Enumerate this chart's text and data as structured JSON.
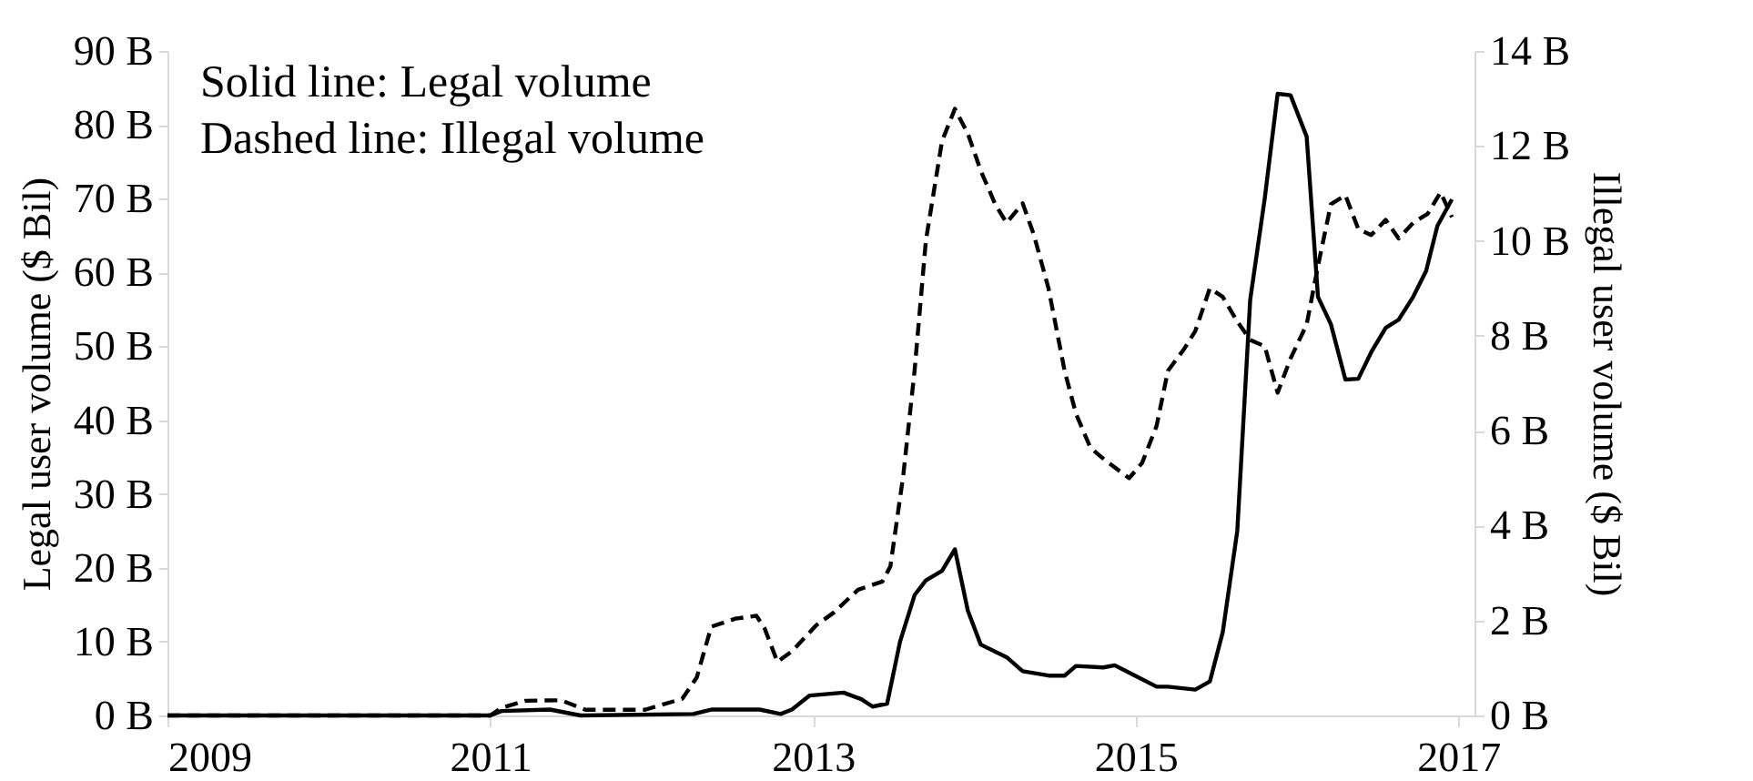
{
  "chart_data": {
    "type": "line",
    "ylabel": "Legal user volume ($ Bil)",
    "y2label": "Illegal user volume ($ Bil)",
    "annotations": [
      "Solid line: Legal volume",
      "Dashed line: Illegal volume"
    ],
    "xlim": [
      2009,
      2017.1
    ],
    "xticks": [
      2009,
      2011,
      2013,
      2015,
      2017
    ],
    "ylim": [
      0,
      90
    ],
    "yticks": [
      {
        "value": 0,
        "label": "0 B"
      },
      {
        "value": 10,
        "label": "10 B"
      },
      {
        "value": 20,
        "label": "20 B"
      },
      {
        "value": 30,
        "label": "30 B"
      },
      {
        "value": 40,
        "label": "40 B"
      },
      {
        "value": 50,
        "label": "50 B"
      },
      {
        "value": 60,
        "label": "60 B"
      },
      {
        "value": 70,
        "label": "70 B"
      },
      {
        "value": 80,
        "label": "80 B"
      },
      {
        "value": 90,
        "label": "90 B"
      }
    ],
    "y2lim": [
      0,
      14
    ],
    "y2ticks": [
      {
        "value": 0,
        "label": "0 B"
      },
      {
        "value": 2,
        "label": "2 B"
      },
      {
        "value": 4,
        "label": "4 B"
      },
      {
        "value": 6,
        "label": "6 B"
      },
      {
        "value": 8,
        "label": "8 B"
      },
      {
        "value": 10,
        "label": "10 B"
      },
      {
        "value": 12,
        "label": "12 B"
      },
      {
        "value": 14,
        "label": "14 B"
      }
    ],
    "grid": false,
    "marker": "none",
    "series": [
      {
        "color": "#000000",
        "line_style": "solid",
        "x": [
          2009,
          2010,
          2011,
          2011.07,
          2011.37,
          2011.56,
          2012.26,
          2012.37,
          2012.67,
          2012.8,
          2012.87,
          2012.98,
          2013.19,
          2013.3,
          2013.37,
          2013.46,
          2013.54,
          2013.63,
          2013.7,
          2013.8,
          2013.88,
          2013.96,
          2014.04,
          2014.2,
          2014.3,
          2014.46,
          2014.56,
          2014.63,
          2014.8,
          2014.87,
          2014.96,
          2015.13,
          2015.2,
          2015.37,
          2015.46,
          2015.54,
          2015.63,
          2015.71,
          2015.8,
          2015.88,
          2015.96,
          2016.06,
          2016.13,
          2016.21,
          2016.3,
          2016.38,
          2016.46,
          2016.55,
          2016.63,
          2016.72,
          2016.8,
          2016.87,
          2016.96
        ],
        "values": [
          0,
          0,
          0,
          0.6,
          0.8,
          0,
          0.2,
          0.8,
          0.8,
          0.2,
          0.8,
          2.7,
          3.1,
          2.2,
          1.2,
          1.6,
          10,
          16.3,
          18.3,
          19.6,
          22.5,
          14.2,
          9.6,
          7.9,
          6,
          5.4,
          5.4,
          6.7,
          6.5,
          6.8,
          5.8,
          3.9,
          3.9,
          3.5,
          4.6,
          11.3,
          25,
          56.3,
          70,
          84.2,
          84,
          78.4,
          56.7,
          53,
          45.5,
          45.6,
          49.2,
          52.5,
          53.6,
          56.7,
          60.2,
          66.3,
          69.9
        ]
      },
      {
        "color": "#000000",
        "line_style": "dashed",
        "axis": "y2",
        "x": [
          2009,
          2010,
          2011,
          2011.07,
          2011.22,
          2011.44,
          2011.59,
          2011.96,
          2012.19,
          2012.28,
          2012.37,
          2012.52,
          2012.65,
          2012.7,
          2012.78,
          2012.87,
          2013.02,
          2013.13,
          2013.28,
          2013.43,
          2013.48,
          2013.56,
          2013.63,
          2013.7,
          2013.8,
          2013.88,
          2013.96,
          2014.04,
          2014.13,
          2014.2,
          2014.3,
          2014.37,
          2014.46,
          2014.56,
          2014.63,
          2014.72,
          2014.81,
          2014.96,
          2015.04,
          2015.13,
          2015.2,
          2015.3,
          2015.37,
          2015.46,
          2015.54,
          2015.63,
          2015.71,
          2015.8,
          2015.88,
          2015.96,
          2016.06,
          2016.13,
          2016.21,
          2016.3,
          2016.38,
          2016.46,
          2016.55,
          2016.63,
          2016.72,
          2016.81,
          2016.89,
          2016.96
        ],
        "values": [
          0,
          0,
          0,
          0.16,
          0.31,
          0.32,
          0.12,
          0.12,
          0.35,
          0.8,
          1.87,
          2.04,
          2.1,
          1.84,
          1.13,
          1.35,
          1.9,
          2.17,
          2.65,
          2.82,
          3.14,
          5.06,
          7.26,
          10,
          12.1,
          12.78,
          12.26,
          11.48,
          10.77,
          10.38,
          10.79,
          10.12,
          9,
          7.26,
          6.36,
          5.64,
          5.38,
          5,
          5.32,
          6.1,
          7.26,
          7.72,
          8.1,
          9,
          8.82,
          8.3,
          7.91,
          7.78,
          6.8,
          7.52,
          8.24,
          9.47,
          10.77,
          10.96,
          10.25,
          10.12,
          10.44,
          10.05,
          10.38,
          10.57,
          11.02,
          10.5
        ]
      }
    ]
  }
}
